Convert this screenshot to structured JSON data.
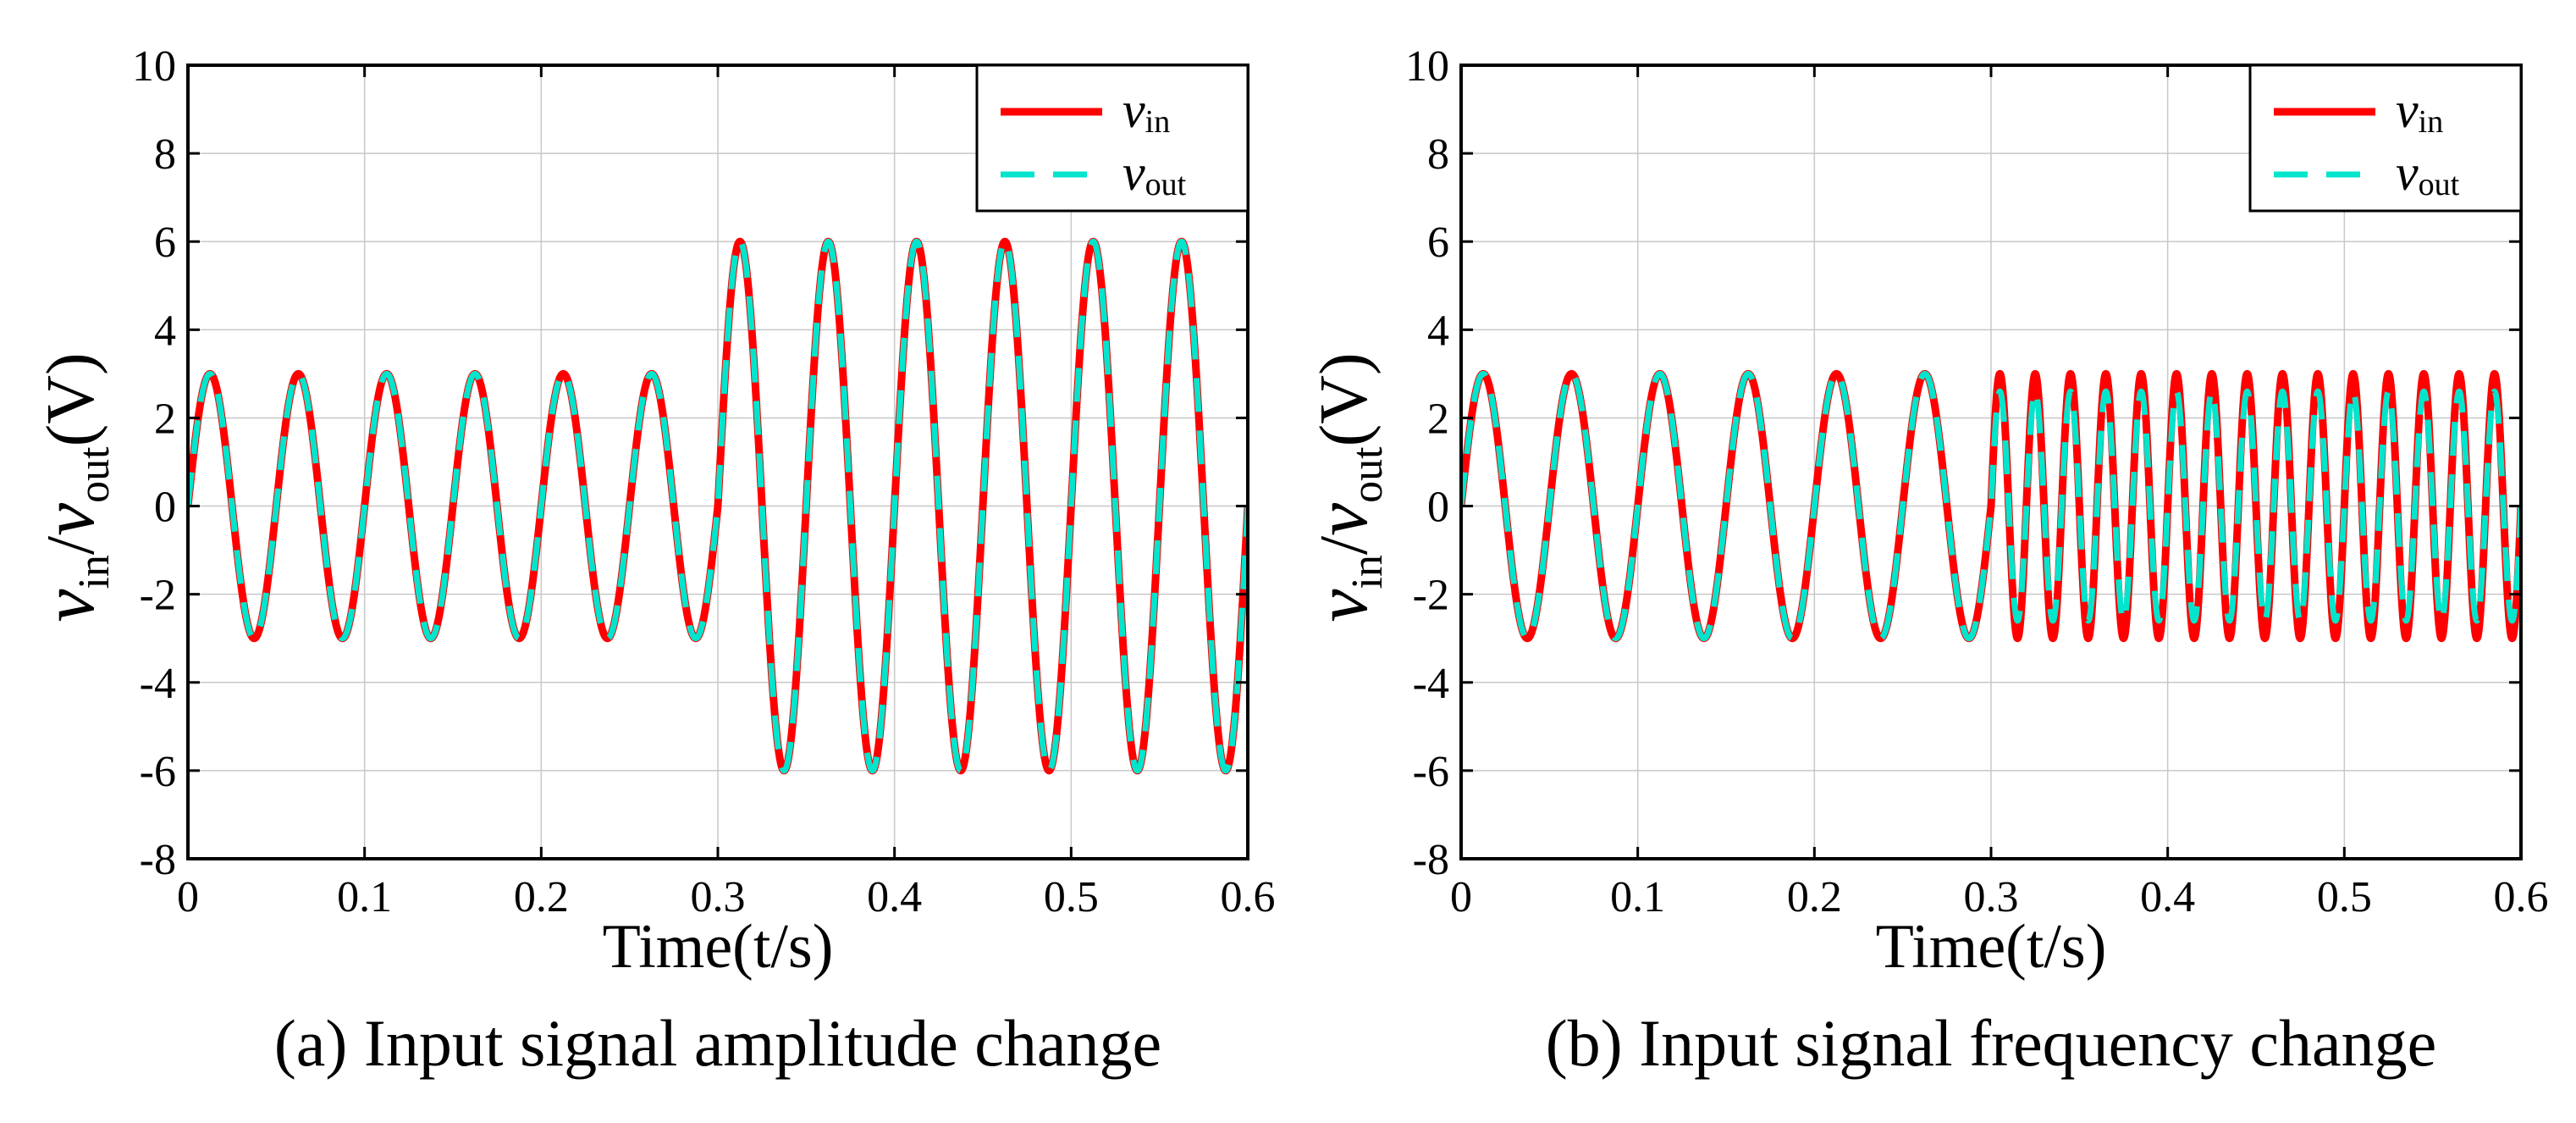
{
  "chart_data": [
    {
      "type": "line",
      "caption": "(a) Input signal amplitude change",
      "xlabel": "Time(t/s)",
      "ylabel": {
        "v1": "v",
        "s1": "in",
        "sep": "/",
        "v2": "v",
        "s2": "out",
        "unit": "(V)"
      },
      "xlim": [
        0,
        0.6
      ],
      "ylim": [
        -8,
        10
      ],
      "xticks": [
        "0",
        "0.1",
        "0.2",
        "0.3",
        "0.4",
        "0.5",
        "0.6"
      ],
      "yticks": [
        "-8",
        "-6",
        "-4",
        "-2",
        "0",
        "2",
        "4",
        "6",
        "8",
        "10"
      ],
      "grid": true,
      "legend_position": "top-right",
      "series": [
        {
          "key": "vin",
          "legend": {
            "v": "v",
            "sub": "in"
          },
          "color": "#ff0000",
          "style": "solid",
          "signal": [
            {
              "t_start": 0,
              "t_end": 0.3,
              "amplitude": 3,
              "frequency_hz": 20
            },
            {
              "t_start": 0.3,
              "t_end": 0.6,
              "amplitude": 6,
              "frequency_hz": 20
            }
          ]
        },
        {
          "key": "vout",
          "legend": {
            "v": "v",
            "sub": "out"
          },
          "color": "#00e5cc",
          "style": "dashed",
          "signal": [
            {
              "t_start": 0,
              "t_end": 0.3,
              "amplitude": 3,
              "frequency_hz": 20
            },
            {
              "t_start": 0.3,
              "t_end": 0.6,
              "amplitude": 6,
              "frequency_hz": 20
            }
          ]
        }
      ]
    },
    {
      "type": "line",
      "caption": "(b) Input signal frequency change",
      "xlabel": "Time(t/s)",
      "ylabel": {
        "v1": "v",
        "s1": "in",
        "sep": "/",
        "v2": "v",
        "s2": "out",
        "unit": "(V)"
      },
      "xlim": [
        0,
        0.6
      ],
      "ylim": [
        -8,
        10
      ],
      "xticks": [
        "0",
        "0.1",
        "0.2",
        "0.3",
        "0.4",
        "0.5",
        "0.6"
      ],
      "yticks": [
        "-8",
        "-6",
        "-4",
        "-2",
        "0",
        "2",
        "4",
        "6",
        "8",
        "10"
      ],
      "grid": true,
      "legend_position": "top-right",
      "series": [
        {
          "key": "vin",
          "legend": {
            "v": "v",
            "sub": "in"
          },
          "color": "#ff0000",
          "style": "solid",
          "signal": [
            {
              "t_start": 0,
              "t_end": 0.3,
              "amplitude": 3,
              "frequency_hz": 20
            },
            {
              "t_start": 0.3,
              "t_end": 0.6,
              "amplitude": 3,
              "frequency_hz": 50
            }
          ]
        },
        {
          "key": "vout",
          "legend": {
            "v": "v",
            "sub": "out"
          },
          "color": "#00e5cc",
          "style": "dashed",
          "signal": [
            {
              "t_start": 0,
              "t_end": 0.3,
              "amplitude": 3,
              "frequency_hz": 20
            },
            {
              "t_start": 0.3,
              "t_end": 0.6,
              "amplitude": 2.6,
              "frequency_hz": 50
            }
          ]
        }
      ]
    }
  ]
}
